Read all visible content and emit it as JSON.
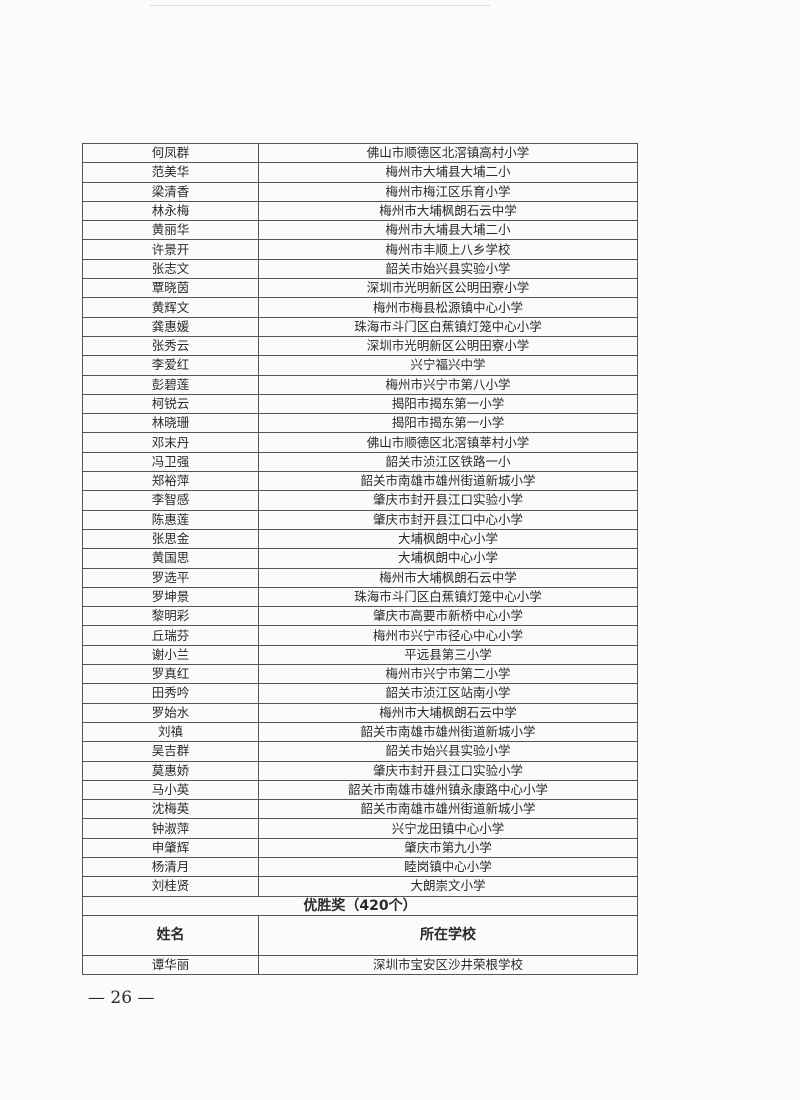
{
  "rows": [
    {
      "name": "何凤群",
      "school": "佛山市顺德区北滘镇高村小学"
    },
    {
      "name": "范美华",
      "school": "梅州市大埔县大埔二小"
    },
    {
      "name": "梁清香",
      "school": "梅州市梅江区乐育小学"
    },
    {
      "name": "林永梅",
      "school": "梅州市大埔枫朗石云中学"
    },
    {
      "name": "黄丽华",
      "school": "梅州市大埔县大埔二小"
    },
    {
      "name": "许景开",
      "school": "梅州市丰顺上八乡学校"
    },
    {
      "name": "张志文",
      "school": "韶关市始兴县实验小学"
    },
    {
      "name": "覃晓茵",
      "school": "深圳市光明新区公明田寮小学"
    },
    {
      "name": "黄辉文",
      "school": "梅州市梅县松源镇中心小学"
    },
    {
      "name": "龚惠媛",
      "school": "珠海市斗门区白蕉镇灯笼中心小学"
    },
    {
      "name": "张秀云",
      "school": "深圳市光明新区公明田寮小学"
    },
    {
      "name": "李爱红",
      "school": "兴宁福兴中学"
    },
    {
      "name": "彭碧莲",
      "school": "梅州市兴宁市第八小学"
    },
    {
      "name": "柯锐云",
      "school": "揭阳市揭东第一小学"
    },
    {
      "name": "林晓珊",
      "school": "揭阳市揭东第一小学"
    },
    {
      "name": "邓末丹",
      "school": "佛山市顺德区北滘镇莘村小学"
    },
    {
      "name": "冯卫强",
      "school": "韶关市浈江区铁路一小"
    },
    {
      "name": "郑裕萍",
      "school": "韶关市南雄市雄州街道新城小学"
    },
    {
      "name": "李智感",
      "school": "肇庆市封开县江口实验小学"
    },
    {
      "name": "陈惠莲",
      "school": "肇庆市封开县江口中心小学"
    },
    {
      "name": "张思金",
      "school": "大埔枫朗中心小学"
    },
    {
      "name": "黄国思",
      "school": "大埔枫朗中心小学"
    },
    {
      "name": "罗选平",
      "school": "梅州市大埔枫朗石云中学"
    },
    {
      "name": "罗坤景",
      "school": "珠海市斗门区白蕉镇灯笼中心小学"
    },
    {
      "name": "黎明彩",
      "school": "肇庆市高要市新桥中心小学"
    },
    {
      "name": "丘瑞芬",
      "school": "梅州市兴宁市径心中心小学"
    },
    {
      "name": "谢小兰",
      "school": "平远县第三小学"
    },
    {
      "name": "罗真红",
      "school": "梅州市兴宁市第二小学"
    },
    {
      "name": "田秀吟",
      "school": "韶关市浈江区站南小学"
    },
    {
      "name": "罗始水",
      "school": "梅州市大埔枫朗石云中学"
    },
    {
      "name": "刘禛",
      "school": "韶关市南雄市雄州街道新城小学"
    },
    {
      "name": "吴吉群",
      "school": "韶关市始兴县实验小学"
    },
    {
      "name": "莫惠娇",
      "school": "肇庆市封开县江口实验小学"
    },
    {
      "name": "马小英",
      "school": "韶关市南雄市雄州镇永康路中心小学"
    },
    {
      "name": "沈梅英",
      "school": "韶关市南雄市雄州街道新城小学"
    },
    {
      "name": "钟淑萍",
      "school": "兴宁龙田镇中心小学"
    },
    {
      "name": "申肇辉",
      "school": "肇庆市第九小学"
    },
    {
      "name": "杨清月",
      "school": "睦岗镇中心小学"
    },
    {
      "name": "刘桂贤",
      "school": "大朗崇文小学"
    }
  ],
  "section": {
    "title": "优胜奖（420个）"
  },
  "header": {
    "name": "姓名",
    "school": "所在学校"
  },
  "section_rows": [
    {
      "name": "谭华丽",
      "school": "深圳市宝安区沙井荣根学校"
    }
  ],
  "page_number": "— 26 —"
}
